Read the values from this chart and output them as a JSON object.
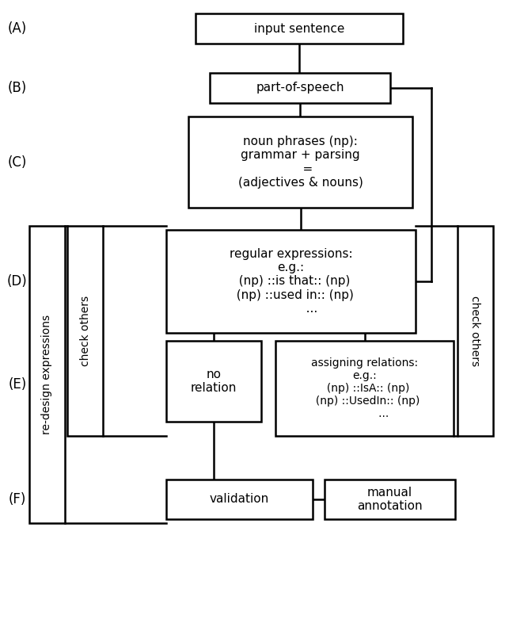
{
  "bg_color": "#ffffff",
  "text_color": "#000000",
  "box_edge_color": "#000000",
  "box_face_color": "#ffffff",
  "label_A": "(A)",
  "label_B": "(B)",
  "label_C": "(C)",
  "label_D": "(D)",
  "label_E": "(E)",
  "label_F": "(F)",
  "box_A_text": "input sentence",
  "box_B_text": "part-of-speech",
  "box_C_text": "noun phrases (np):\ngrammar + parsing\n    =\n(adjectives & nouns)",
  "box_D_text": "regular expressions:\ne.g.:\n  (np) ::is that:: (np)\n  (np) ::used in:: (np)\n           ...",
  "box_E1_text": "no\nrelation",
  "box_E2_text": "assigning relations:\ne.g.:\n  (np) ::IsA:: (np)\n  (np) ::UsedIn:: (np)\n           ...",
  "box_F1_text": "validation",
  "box_F2_text": "manual\nannotation",
  "side_left_text1": "re-design expressions",
  "side_left_text2": "check others",
  "side_right_text": "check others",
  "lw": 1.8,
  "fontsize_main": 11,
  "fontsize_label": 12,
  "fontsize_side": 10
}
